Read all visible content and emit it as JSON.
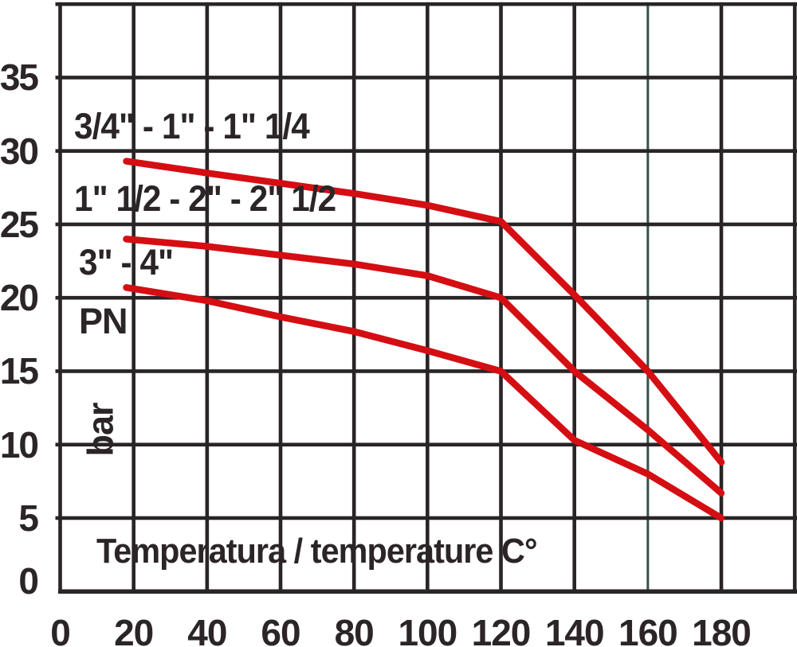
{
  "figure": {
    "background": "#ffffff",
    "grid_color": "#292425",
    "axis_color": "#292425",
    "highlight_line_color": "#35514c",
    "curve_color": "#d40e13",
    "text_color": "#2b2527"
  },
  "chart_data": {
    "type": "line",
    "xlabel": "Temperatura / temperature C°",
    "ylabel_primary": "PN",
    "ylabel_secondary": "bar",
    "xlim": [
      0,
      200
    ],
    "ylim": [
      0,
      40
    ],
    "x_tick_step": 20,
    "y_tick_step": 5,
    "x_ticks": [
      0,
      20,
      40,
      60,
      80,
      100,
      120,
      140,
      160,
      180
    ],
    "y_ticks": [
      35,
      30,
      25,
      20,
      15,
      10,
      5,
      0
    ],
    "grid": true,
    "legend_position": "inline-left",
    "highlight_x": 160,
    "series": [
      {
        "name": "3/4\" - 1\" - 1\" 1/4",
        "points": [
          [
            18,
            29.3
          ],
          [
            40,
            28.5
          ],
          [
            60,
            27.8
          ],
          [
            80,
            27.1
          ],
          [
            100,
            26.3
          ],
          [
            120,
            25.2
          ],
          [
            140,
            20.2
          ],
          [
            160,
            15.0
          ],
          [
            180,
            8.8
          ]
        ]
      },
      {
        "name": "1\" 1/2 - 2\" - 2\" 1/2",
        "points": [
          [
            18,
            24.0
          ],
          [
            40,
            23.5
          ],
          [
            60,
            22.9
          ],
          [
            80,
            22.3
          ],
          [
            100,
            21.5
          ],
          [
            120,
            20.0
          ],
          [
            140,
            15.0
          ],
          [
            160,
            11.0
          ],
          [
            180,
            6.7
          ]
        ]
      },
      {
        "name": "3\" - 4\"",
        "points": [
          [
            18,
            20.7
          ],
          [
            40,
            19.8
          ],
          [
            60,
            18.7
          ],
          [
            80,
            17.7
          ],
          [
            100,
            16.4
          ],
          [
            120,
            15.0
          ],
          [
            140,
            10.3
          ],
          [
            160,
            8.0
          ],
          [
            180,
            5.0
          ]
        ]
      }
    ]
  }
}
